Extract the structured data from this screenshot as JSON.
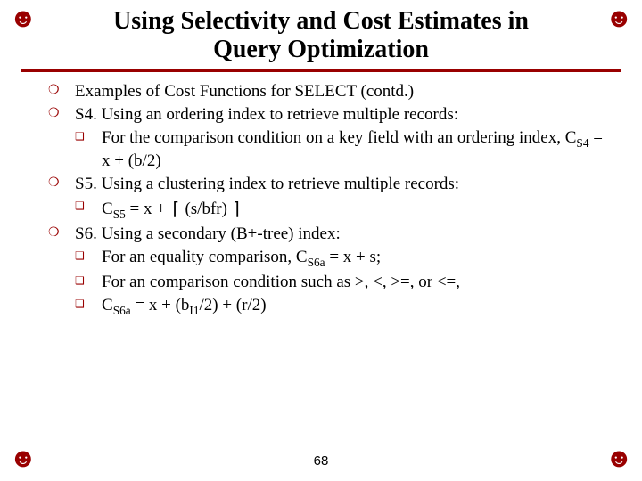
{
  "colors": {
    "accent": "#990000",
    "text": "#000000",
    "background": "#ffffff"
  },
  "corner_glyph": "☻",
  "title_line1": "Using Selectivity and Cost Estimates in",
  "title_line2": "Query Optimization",
  "page_number": "68",
  "bullets": {
    "b1": "Examples of Cost Functions for SELECT (contd.)",
    "b2": "S4. Using an ordering index to retrieve multiple records:",
    "b2a_pre": "For the comparison condition on a key field with an ordering index, C",
    "b2a_sub": "S4",
    "b2a_post": " = x + (b/2)",
    "b3": "S5. Using a clustering index to retrieve multiple records:",
    "b3a_pre": "C",
    "b3a_sub": "S5",
    "b3a_mid": " = x + ",
    "b3a_ceil_l": "⌈",
    "b3a_inner": " (s/bfr) ",
    "b3a_ceil_r": "⌉",
    "b4": "S6. Using a secondary (B+-tree) index:",
    "b4a_pre": "For an equality comparison, C",
    "b4a_sub": "S6a",
    "b4a_post": " = x + s;",
    "b4b": "For an comparison condition such as >, <, >=, or <=,",
    "b4c_pre": "C",
    "b4c_sub": "S6a",
    "b4c_mid": " = x + (b",
    "b4c_sub2": "I1",
    "b4c_post": "/2) + (r/2)"
  }
}
